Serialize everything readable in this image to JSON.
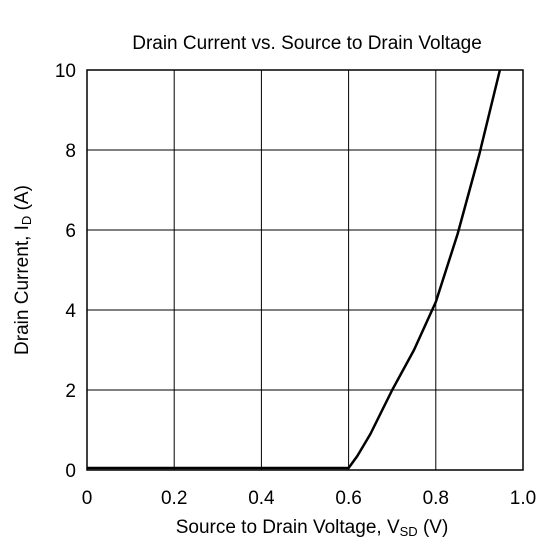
{
  "chart_data": {
    "type": "line",
    "title": "Drain Current vs. Source to Drain Voltage",
    "xlabel": {
      "main": "Source to Drain Voltage, V",
      "sub": "SD",
      "unit": " (V)"
    },
    "ylabel": {
      "main": "Drain Current, I",
      "sub": "D",
      "unit": " (A)"
    },
    "xlim": [
      0,
      1.0
    ],
    "ylim": [
      0,
      10
    ],
    "xticks": [
      0,
      0.2,
      0.4,
      0.6,
      0.8,
      1.0
    ],
    "xtick_labels": [
      "0",
      "0.2",
      "0.4",
      "0.6",
      "0.8",
      "1.0"
    ],
    "yticks": [
      0,
      2,
      4,
      6,
      8,
      10
    ],
    "ytick_labels": [
      "0",
      "2",
      "4",
      "6",
      "8",
      "10"
    ],
    "grid": true,
    "series": [
      {
        "x": [
          0,
          0.6,
          0.62,
          0.65,
          0.7,
          0.75,
          0.8,
          0.85,
          0.9,
          0.947
        ],
        "y": [
          0.05,
          0.05,
          0.35,
          0.9,
          2.0,
          3.0,
          4.2,
          5.9,
          7.9,
          10.0
        ]
      }
    ]
  }
}
